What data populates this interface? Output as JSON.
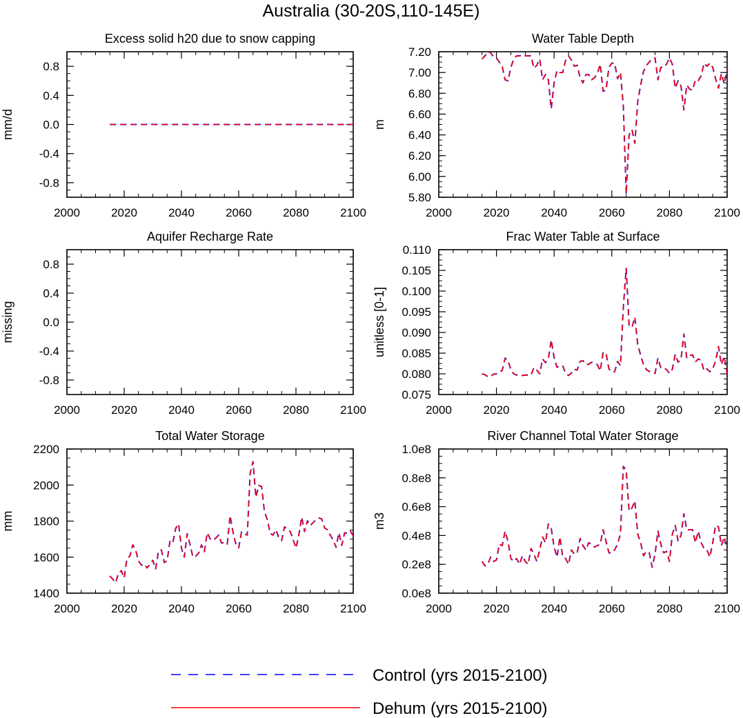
{
  "page": {
    "title": "Australia (30-20S,110-145E)"
  },
  "legend": {
    "entries": [
      {
        "label": "Control (yrs 2015-2100)",
        "color": "#0000ff",
        "style": "dashed"
      },
      {
        "label": "Dehum (yrs 2015-2100)",
        "color": "#ff0000",
        "style": "solid"
      }
    ]
  },
  "chart_data": [
    {
      "type": "line",
      "title": "Excess solid h20 due to snow capping",
      "ylabel": "mm/d",
      "xlabel": "",
      "xlim": [
        2000,
        2100
      ],
      "ylim": [
        -1.0,
        1.0
      ],
      "xticks": [
        2000,
        2020,
        2040,
        2060,
        2080,
        2100
      ],
      "xtick_labels": [
        "2000",
        "2020",
        "2040",
        "2060",
        "2080",
        "2100"
      ],
      "yticks": [
        -0.8,
        -0.4,
        0.0,
        0.4,
        0.8
      ],
      "ytick_labels": [
        "-0.8",
        "-0.4",
        "0.0",
        "0.4",
        "0.8"
      ],
      "x": [
        2015,
        2100
      ],
      "series": [
        {
          "name": "Control (yrs 2015-2100)",
          "values": [
            0,
            0
          ]
        },
        {
          "name": "Dehum (yrs 2015-2100)",
          "values": [
            0,
            0
          ]
        }
      ]
    },
    {
      "type": "line",
      "title": "Water Table Depth",
      "ylabel": "m",
      "xlabel": "",
      "xlim": [
        2000,
        2100
      ],
      "ylim": [
        5.8,
        7.2
      ],
      "xticks": [
        2000,
        2020,
        2040,
        2060,
        2080,
        2100
      ],
      "xtick_labels": [
        "2000",
        "2020",
        "2040",
        "2060",
        "2080",
        "2100"
      ],
      "yticks": [
        5.8,
        6.0,
        6.2,
        6.4,
        6.6,
        6.8,
        7.0,
        7.2
      ],
      "ytick_labels": [
        "5.80",
        "6.00",
        "6.20",
        "6.40",
        "6.60",
        "6.80",
        "7.00",
        "7.20"
      ],
      "x_start": 2015,
      "series": [
        {
          "name": "Control (yrs 2015-2100)",
          "values": [
            7.13,
            7.16,
            7.2,
            7.19,
            7.15,
            7.14,
            7.1,
            7.06,
            6.93,
            6.92,
            7.05,
            7.13,
            7.16,
            7.16,
            7.17,
            7.16,
            7.16,
            7.16,
            7.04,
            7.07,
            7.13,
            6.93,
            6.98,
            6.93,
            6.65,
            6.9,
            7.02,
            7.0,
            7.0,
            7.12,
            7.16,
            7.12,
            7.06,
            7.07,
            6.95,
            6.9,
            6.98,
            6.98,
            6.93,
            6.95,
            6.99,
            7.08,
            6.82,
            6.83,
            7.05,
            7.09,
            7.09,
            6.94,
            7.0,
            6.68,
            5.83,
            6.4,
            6.45,
            6.32,
            6.72,
            6.88,
            7.01,
            7.07,
            7.1,
            7.13,
            7.14,
            6.93,
            7.05,
            7.05,
            7.08,
            7.14,
            7.08,
            6.85,
            6.92,
            6.87,
            6.64,
            6.88,
            6.84,
            6.83,
            6.93,
            6.92,
            6.97,
            7.09,
            7.06,
            7.09,
            7.05,
            6.94,
            6.85,
            6.99,
            6.89,
            7.03
          ]
        },
        {
          "name": "Dehum (yrs 2015-2100)",
          "values": [
            7.13,
            7.16,
            7.2,
            7.19,
            7.15,
            7.14,
            7.1,
            7.06,
            6.93,
            6.92,
            7.05,
            7.13,
            7.16,
            7.16,
            7.17,
            7.16,
            7.16,
            7.16,
            7.04,
            7.07,
            7.13,
            6.93,
            6.98,
            6.93,
            6.65,
            6.9,
            7.02,
            7.0,
            7.0,
            7.12,
            7.16,
            7.12,
            7.06,
            7.07,
            6.95,
            6.9,
            6.98,
            6.98,
            6.93,
            6.95,
            6.99,
            7.08,
            6.82,
            6.83,
            7.05,
            7.09,
            7.09,
            6.94,
            7.0,
            6.68,
            5.83,
            6.4,
            6.45,
            6.32,
            6.72,
            6.88,
            7.01,
            7.07,
            7.1,
            7.13,
            7.14,
            6.93,
            7.05,
            7.05,
            7.08,
            7.14,
            7.08,
            6.85,
            6.92,
            6.87,
            6.64,
            6.88,
            6.84,
            6.83,
            6.93,
            6.92,
            6.97,
            7.09,
            7.06,
            7.09,
            7.05,
            6.94,
            6.85,
            6.99,
            6.89,
            7.03
          ]
        }
      ]
    },
    {
      "type": "line",
      "title": "Aquifer Recharge Rate",
      "ylabel": "missing",
      "xlabel": "",
      "xlim": [
        2000,
        2100
      ],
      "ylim": [
        -1.0,
        1.0
      ],
      "xticks": [
        2000,
        2020,
        2040,
        2060,
        2080,
        2100
      ],
      "xtick_labels": [
        "2000",
        "2020",
        "2040",
        "2060",
        "2080",
        "2100"
      ],
      "yticks": [
        -0.8,
        -0.4,
        0.0,
        0.4,
        0.8
      ],
      "ytick_labels": [
        "-0.8",
        "-0.4",
        "0.0",
        "0.4",
        "0.8"
      ],
      "series": []
    },
    {
      "type": "line",
      "title": "Frac Water Table at Surface",
      "ylabel": "unitless [0-1]",
      "xlabel": "",
      "xlim": [
        2000,
        2100
      ],
      "ylim": [
        0.075,
        0.11
      ],
      "xticks": [
        2000,
        2020,
        2040,
        2060,
        2080,
        2100
      ],
      "xtick_labels": [
        "2000",
        "2020",
        "2040",
        "2060",
        "2080",
        "2100"
      ],
      "yticks": [
        0.075,
        0.08,
        0.085,
        0.09,
        0.095,
        0.1,
        0.105,
        0.11
      ],
      "ytick_labels": [
        "0.075",
        "0.080",
        "0.085",
        "0.090",
        "0.095",
        "0.100",
        "0.105",
        "0.110"
      ],
      "x_start": 2015,
      "series": [
        {
          "name": "Control (yrs 2015-2100)",
          "values": [
            0.08,
            0.0798,
            0.0793,
            0.0794,
            0.0799,
            0.08,
            0.0805,
            0.0808,
            0.0838,
            0.0833,
            0.081,
            0.08,
            0.0797,
            0.0797,
            0.0796,
            0.0797,
            0.0797,
            0.0797,
            0.0815,
            0.0809,
            0.08,
            0.0836,
            0.0827,
            0.0836,
            0.0882,
            0.0839,
            0.0816,
            0.0819,
            0.0819,
            0.0801,
            0.0796,
            0.0802,
            0.0811,
            0.0809,
            0.083,
            0.0832,
            0.0823,
            0.0823,
            0.0828,
            0.0825,
            0.0822,
            0.0807,
            0.0852,
            0.085,
            0.0812,
            0.0805,
            0.0805,
            0.083,
            0.082,
            0.096,
            0.1055,
            0.0918,
            0.0912,
            0.0937,
            0.0871,
            0.0845,
            0.0822,
            0.081,
            0.0806,
            0.0803,
            0.0801,
            0.0838,
            0.0815,
            0.0815,
            0.081,
            0.0801,
            0.0811,
            0.0847,
            0.0828,
            0.0835,
            0.0896,
            0.0838,
            0.0844,
            0.0846,
            0.0829,
            0.0836,
            0.0832,
            0.0807,
            0.0812,
            0.0805,
            0.0812,
            0.0831,
            0.0866,
            0.0822,
            0.0842,
            0.08
          ]
        },
        {
          "name": "Dehum (yrs 2015-2100)",
          "values": [
            0.08,
            0.0798,
            0.0793,
            0.0794,
            0.0799,
            0.08,
            0.0805,
            0.0808,
            0.0838,
            0.0833,
            0.081,
            0.08,
            0.0797,
            0.0797,
            0.0796,
            0.0797,
            0.0797,
            0.0797,
            0.0815,
            0.0809,
            0.08,
            0.0836,
            0.0827,
            0.0836,
            0.0882,
            0.0839,
            0.0816,
            0.0819,
            0.0819,
            0.0801,
            0.0796,
            0.0802,
            0.0811,
            0.0809,
            0.083,
            0.0832,
            0.0823,
            0.0823,
            0.0828,
            0.0825,
            0.0822,
            0.0807,
            0.0852,
            0.085,
            0.0812,
            0.0805,
            0.0805,
            0.083,
            0.082,
            0.096,
            0.1055,
            0.0918,
            0.0912,
            0.0937,
            0.0871,
            0.0845,
            0.0822,
            0.081,
            0.0806,
            0.0803,
            0.0801,
            0.0838,
            0.0815,
            0.0815,
            0.081,
            0.0801,
            0.0811,
            0.0847,
            0.0828,
            0.0835,
            0.0896,
            0.0838,
            0.0844,
            0.0846,
            0.0829,
            0.0836,
            0.0832,
            0.0807,
            0.0812,
            0.0805,
            0.0812,
            0.0831,
            0.0866,
            0.0822,
            0.0842,
            0.08
          ]
        }
      ]
    },
    {
      "type": "line",
      "title": "Total Water Storage",
      "ylabel": "mm",
      "xlabel": "",
      "xlim": [
        2000,
        2100
      ],
      "ylim": [
        1400,
        2200
      ],
      "xticks": [
        2000,
        2020,
        2040,
        2060,
        2080,
        2100
      ],
      "xtick_labels": [
        "2000",
        "2020",
        "2040",
        "2060",
        "2080",
        "2100"
      ],
      "yticks": [
        1400,
        1600,
        1800,
        2000,
        2200
      ],
      "ytick_labels": [
        "1400",
        "1600",
        "1800",
        "2000",
        "2200"
      ],
      "x_start": 2015,
      "series": [
        {
          "name": "Control (yrs 2015-2100)",
          "values": [
            1495,
            1478,
            1458,
            1510,
            1525,
            1485,
            1595,
            1605,
            1668,
            1640,
            1580,
            1555,
            1562,
            1540,
            1560,
            1582,
            1535,
            1635,
            1640,
            1570,
            1580,
            1690,
            1680,
            1760,
            1785,
            1650,
            1600,
            1730,
            1670,
            1600,
            1605,
            1622,
            1668,
            1630,
            1735,
            1702,
            1692,
            1706,
            1722,
            1678,
            1682,
            1672,
            1830,
            1740,
            1672,
            1652,
            1740,
            1730,
            1722,
            2065,
            2130,
            1932,
            1998,
            1992,
            1852,
            1808,
            1732,
            1722,
            1752,
            1707,
            1692,
            1768,
            1755,
            1742,
            1698,
            1650,
            1722,
            1822,
            1742,
            1802,
            1775,
            1792,
            1808,
            1817,
            1812,
            1762,
            1752,
            1722,
            1695,
            1655,
            1735,
            1665,
            1735,
            1732,
            1744,
            1718
          ]
        },
        {
          "name": "Dehum (yrs 2015-2100)",
          "values": [
            1495,
            1478,
            1458,
            1510,
            1525,
            1485,
            1595,
            1605,
            1668,
            1640,
            1580,
            1555,
            1562,
            1540,
            1560,
            1582,
            1535,
            1635,
            1640,
            1570,
            1580,
            1690,
            1680,
            1760,
            1785,
            1650,
            1600,
            1730,
            1670,
            1600,
            1605,
            1622,
            1668,
            1630,
            1735,
            1702,
            1692,
            1706,
            1722,
            1678,
            1682,
            1672,
            1830,
            1740,
            1672,
            1652,
            1740,
            1730,
            1722,
            2065,
            2130,
            1932,
            1998,
            1992,
            1852,
            1808,
            1732,
            1722,
            1752,
            1707,
            1692,
            1768,
            1755,
            1742,
            1698,
            1650,
            1722,
            1822,
            1742,
            1802,
            1775,
            1792,
            1808,
            1817,
            1812,
            1762,
            1752,
            1722,
            1695,
            1655,
            1735,
            1665,
            1735,
            1732,
            1744,
            1718
          ]
        }
      ]
    },
    {
      "type": "line",
      "title": "River Channel Total Water Storage",
      "ylabel": "m3",
      "xlabel": "",
      "xlim": [
        2000,
        2100
      ],
      "ylim": [
        0,
        100000000.0
      ],
      "xticks": [
        2000,
        2020,
        2040,
        2060,
        2080,
        2100
      ],
      "xtick_labels": [
        "2000",
        "2020",
        "2040",
        "2060",
        "2080",
        "2100"
      ],
      "yticks": [
        0,
        20000000.0,
        40000000.0,
        60000000.0,
        80000000.0,
        100000000.0
      ],
      "ytick_labels": [
        "0.0e8",
        "0.2e8",
        "0.4e8",
        "0.6e8",
        "0.8e8",
        "1.0e8"
      ],
      "x_start": 2015,
      "series": [
        {
          "name": "Control (yrs 2015-2100)",
          "values": [
            22000000.0,
            19000000.0,
            20000000.0,
            25000000.0,
            22000000.0,
            23000000.0,
            34000000.0,
            33000000.0,
            43000000.0,
            36000000.0,
            24000000.0,
            22000000.0,
            24000000.0,
            20000000.0,
            26000000.0,
            22000000.0,
            20000000.0,
            31000000.0,
            27000000.0,
            22000000.0,
            30000000.0,
            39000000.0,
            35000000.0,
            48000000.0,
            45000000.0,
            32000000.0,
            25000000.0,
            39000000.0,
            25000000.0,
            24000000.0,
            20000000.0,
            30000000.0,
            27000000.0,
            28000000.0,
            38000000.0,
            33000000.0,
            30000000.0,
            35000000.0,
            34000000.0,
            32000000.0,
            33000000.0,
            34000000.0,
            44000000.0,
            36000000.0,
            28000000.0,
            28000000.0,
            30000000.0,
            34000000.0,
            41000000.0,
            88000000.0,
            85000000.0,
            57000000.0,
            59000000.0,
            64000000.0,
            41000000.0,
            35000000.0,
            26000000.0,
            29000000.0,
            28000000.0,
            18000000.0,
            27000000.0,
            43000000.0,
            34000000.0,
            28000000.0,
            29000000.0,
            22000000.0,
            41000000.0,
            47000000.0,
            36000000.0,
            40000000.0,
            55000000.0,
            44000000.0,
            44000000.0,
            44000000.0,
            35000000.0,
            43000000.0,
            35000000.0,
            31000000.0,
            30000000.0,
            25000000.0,
            35000000.0,
            47000000.0,
            46000000.0,
            33000000.0,
            39000000.0,
            30000000.0
          ]
        },
        {
          "name": "Dehum (yrs 2015-2100)",
          "values": [
            22000000.0,
            19000000.0,
            20000000.0,
            25000000.0,
            22000000.0,
            23000000.0,
            34000000.0,
            33000000.0,
            43000000.0,
            36000000.0,
            24000000.0,
            22000000.0,
            24000000.0,
            20000000.0,
            26000000.0,
            22000000.0,
            20000000.0,
            31000000.0,
            27000000.0,
            22000000.0,
            30000000.0,
            39000000.0,
            35000000.0,
            48000000.0,
            45000000.0,
            32000000.0,
            25000000.0,
            39000000.0,
            25000000.0,
            24000000.0,
            20000000.0,
            30000000.0,
            27000000.0,
            28000000.0,
            38000000.0,
            33000000.0,
            30000000.0,
            35000000.0,
            34000000.0,
            32000000.0,
            33000000.0,
            34000000.0,
            44000000.0,
            36000000.0,
            28000000.0,
            28000000.0,
            30000000.0,
            34000000.0,
            41000000.0,
            88000000.0,
            85000000.0,
            57000000.0,
            59000000.0,
            64000000.0,
            41000000.0,
            35000000.0,
            26000000.0,
            29000000.0,
            28000000.0,
            18000000.0,
            27000000.0,
            43000000.0,
            34000000.0,
            28000000.0,
            29000000.0,
            22000000.0,
            41000000.0,
            47000000.0,
            36000000.0,
            40000000.0,
            55000000.0,
            44000000.0,
            44000000.0,
            44000000.0,
            35000000.0,
            43000000.0,
            35000000.0,
            31000000.0,
            30000000.0,
            25000000.0,
            35000000.0,
            47000000.0,
            46000000.0,
            33000000.0,
            39000000.0,
            30000000.0
          ]
        }
      ]
    }
  ]
}
